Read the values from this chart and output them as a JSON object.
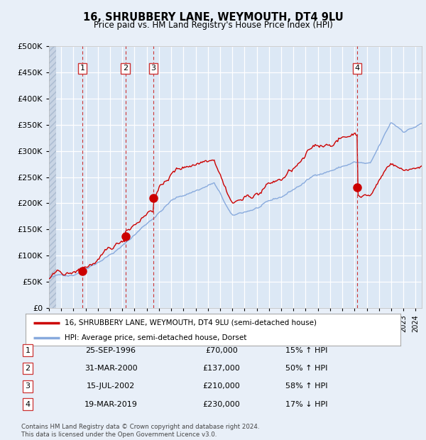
{
  "title": "16, SHRUBBERY LANE, WEYMOUTH, DT4 9LU",
  "subtitle": "Price paid vs. HM Land Registry's House Price Index (HPI)",
  "background_color": "#e8eff8",
  "plot_bg_color": "#dce8f5",
  "grid_color": "#ffffff",
  "sale_times": [
    1996.73,
    2000.25,
    2002.54,
    2019.22
  ],
  "sale_prices": [
    70000,
    137000,
    210000,
    230000
  ],
  "sale_labels": [
    "1",
    "2",
    "3",
    "4"
  ],
  "sale_hpi_pct": [
    "15% ↑ HPI",
    "50% ↑ HPI",
    "58% ↑ HPI",
    "17% ↓ HPI"
  ],
  "sale_dates_display": [
    "25-SEP-1996",
    "31-MAR-2000",
    "15-JUL-2002",
    "19-MAR-2019"
  ],
  "red_line_color": "#cc0000",
  "blue_line_color": "#88aadd",
  "marker_color": "#cc0000",
  "dashed_line_color": "#cc3333",
  "legend_label_red": "16, SHRUBBERY LANE, WEYMOUTH, DT4 9LU (semi-detached house)",
  "legend_label_blue": "HPI: Average price, semi-detached house, Dorset",
  "footer": "Contains HM Land Registry data © Crown copyright and database right 2024.\nThis data is licensed under the Open Government Licence v3.0.",
  "ylim": [
    0,
    500000
  ],
  "yticks": [
    0,
    50000,
    100000,
    150000,
    200000,
    250000,
    300000,
    350000,
    400000,
    450000,
    500000
  ],
  "xlim_start": 1994.0,
  "xlim_end": 2024.5,
  "seed": 42
}
